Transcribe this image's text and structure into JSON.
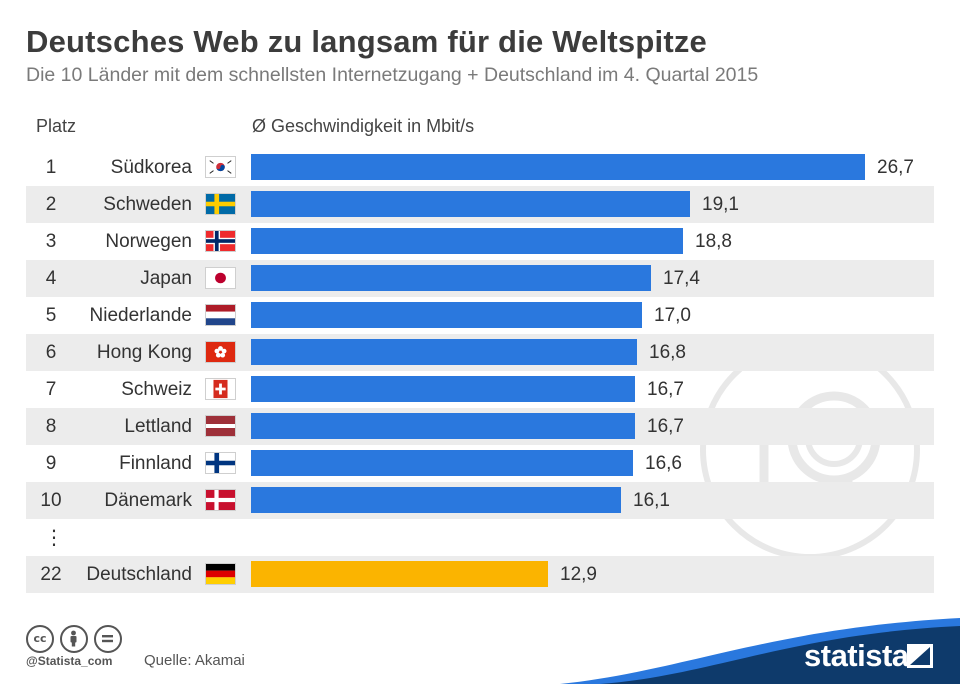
{
  "header": {
    "title": "Deutsches Web zu langsam für die Weltspitze",
    "subtitle": "Die 10 Länder mit dem schnellsten Internetzugang + Deutschland im 4. Quartal 2015",
    "rank_label": "Platz",
    "speed_label": "Ø Geschwindigkeit in Mbit/s"
  },
  "colors": {
    "bar": "#2a78de",
    "highlight_bar": "#fbb400",
    "row_shade": "#ececec",
    "brand_band": "#0e3a6b",
    "brand_accent": "#2a78de"
  },
  "chart_data": {
    "type": "bar",
    "orientation": "horizontal",
    "title": "Deutsches Web zu langsam für die Weltspitze",
    "subtitle": "Die 10 Länder mit dem schnellsten Internetzugang + Deutschland im 4. Quartal 2015",
    "xlabel": "Ø Geschwindigkeit in Mbit/s",
    "xlim": [
      0,
      26.7
    ],
    "grid": false,
    "legend": "none",
    "rows": [
      {
        "rank": "1",
        "country": "Südkorea",
        "flag": "south-korea-flag",
        "value": 26.7,
        "label": "26,7",
        "highlight": false
      },
      {
        "rank": "2",
        "country": "Schweden",
        "flag": "sweden-flag",
        "value": 19.1,
        "label": "19,1",
        "highlight": false
      },
      {
        "rank": "3",
        "country": "Norwegen",
        "flag": "norway-flag",
        "value": 18.8,
        "label": "18,8",
        "highlight": false
      },
      {
        "rank": "4",
        "country": "Japan",
        "flag": "japan-flag",
        "value": 17.4,
        "label": "17,4",
        "highlight": false
      },
      {
        "rank": "5",
        "country": "Niederlande",
        "flag": "netherlands-flag",
        "value": 17.0,
        "label": "17,0",
        "highlight": false
      },
      {
        "rank": "6",
        "country": "Hong Kong",
        "flag": "hong-kong-flag",
        "value": 16.8,
        "label": "16,8",
        "highlight": false
      },
      {
        "rank": "7",
        "country": "Schweiz",
        "flag": "switzerland-flag",
        "value": 16.7,
        "label": "16,7",
        "highlight": false
      },
      {
        "rank": "8",
        "country": "Lettland",
        "flag": "latvia-flag",
        "value": 16.7,
        "label": "16,7",
        "highlight": false
      },
      {
        "rank": "9",
        "country": "Finnland",
        "flag": "finland-flag",
        "value": 16.6,
        "label": "16,6",
        "highlight": false
      },
      {
        "rank": "10",
        "country": "Dänemark",
        "flag": "denmark-flag",
        "value": 16.1,
        "label": "16,1",
        "highlight": false
      },
      {
        "rank": "22",
        "country": "Deutschland",
        "flag": "germany-flag",
        "value": 12.9,
        "label": "12,9",
        "highlight": true
      }
    ],
    "gap_marker": "⋮"
  },
  "footer": {
    "license_icons": [
      "cc-icon",
      "attribution-icon",
      "no-derivatives-icon"
    ],
    "handle": "@Statista_com",
    "source": "Quelle: Akamai",
    "brand": "statista",
    "watermark_icon": "speedometer-laptop-icon"
  }
}
